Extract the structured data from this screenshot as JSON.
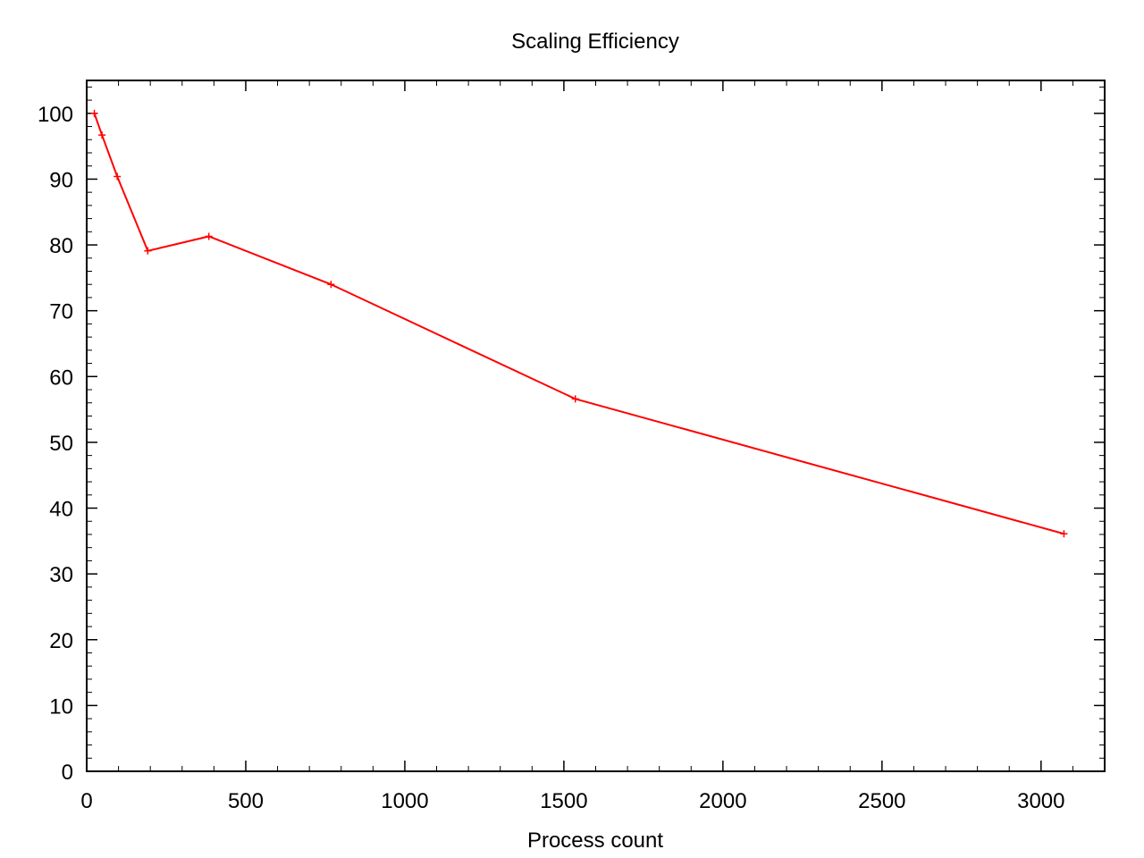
{
  "chart_data": {
    "type": "line",
    "title": "Scaling Efficiency",
    "xlabel": "Process count",
    "ylabel": "",
    "xlim": [
      0,
      3200
    ],
    "ylim": [
      0,
      105
    ],
    "x_ticks": [
      0,
      500,
      1000,
      1500,
      2000,
      2500,
      3000
    ],
    "y_ticks": [
      0,
      10,
      20,
      30,
      40,
      50,
      60,
      70,
      80,
      90,
      100
    ],
    "x_tick_labels": [
      "0",
      "500",
      "1000",
      "1500",
      "2000",
      "2500",
      "3000"
    ],
    "y_tick_labels": [
      "0",
      "10",
      "20",
      "30",
      "40",
      "50",
      "60",
      "70",
      "80",
      "90",
      "100"
    ],
    "x_minor_step": 100,
    "y_minor_step": 2,
    "grid": false,
    "legend": "none",
    "series_color": "#ff0000",
    "series": [
      {
        "x": [
          24,
          48,
          96,
          192,
          384,
          768,
          1536,
          3072
        ],
        "y": [
          100,
          96.7,
          90.4,
          79.1,
          81.3,
          74.0,
          56.6,
          36.1
        ]
      }
    ]
  }
}
